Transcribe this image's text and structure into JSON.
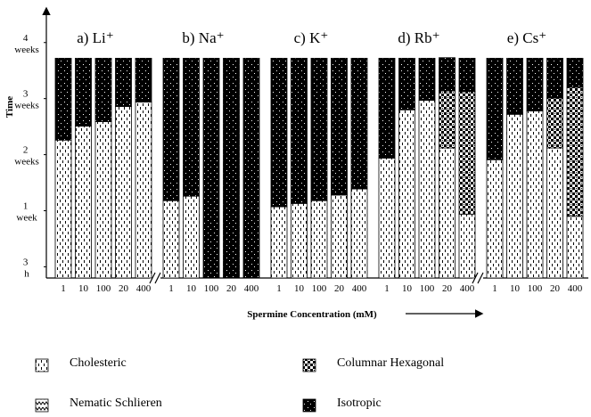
{
  "chart_data": {
    "type": "bar",
    "stacked": true,
    "y_label": "Time",
    "x_label": "Spermine Concentration (mM)",
    "groups": [
      "a) Li⁺",
      "b) Na⁺",
      "c) K⁺",
      "d) Rb⁺",
      "e) Cs⁺"
    ],
    "categories": [
      "1",
      "10",
      "100",
      "20",
      "400",
      "1",
      "10",
      "100",
      "20",
      "400",
      "1",
      "10",
      "100",
      "20",
      "400",
      "1",
      "10",
      "100",
      "20",
      "400",
      "1",
      "10",
      "100",
      "20",
      "400"
    ],
    "ylim": [
      0,
      4.8
    ],
    "yticks": [
      {
        "value": 0.2,
        "label": "3 h"
      },
      {
        "value": 1.2,
        "label": "1 week"
      },
      {
        "value": 2.2,
        "label": "2 weeks"
      },
      {
        "value": 3.2,
        "label": "3 weeks"
      },
      {
        "value": 4.2,
        "label": "4 weeks"
      }
    ],
    "series": [
      {
        "name": "Cholesteric",
        "values": [
          2.46,
          2.71,
          2.79,
          3.06,
          3.14,
          1.38,
          1.46,
          0,
          0,
          0,
          1.27,
          1.33,
          1.38,
          1.48,
          1.59,
          2.14,
          3.0,
          3.17,
          2.32,
          1.14,
          2.11,
          2.92,
          2.98,
          2.32,
          1.1
        ]
      },
      {
        "name": "Nematic Schlieren",
        "values": [
          0,
          0,
          0,
          0,
          0,
          0,
          0,
          0,
          0,
          0,
          0,
          0,
          0,
          0,
          0,
          0,
          0,
          0,
          0,
          0,
          0,
          0,
          0,
          0,
          0
        ]
      },
      {
        "name": "Columnar Hexagonal",
        "values": [
          0,
          0,
          0,
          0,
          0,
          0,
          0,
          0,
          0,
          0,
          0,
          0,
          0,
          0,
          0,
          0,
          0,
          0,
          1.02,
          2.19,
          0,
          0,
          0,
          0.89,
          2.3
        ]
      },
      {
        "name": "Isotropic",
        "values": [
          1.46,
          1.21,
          1.13,
          0.86,
          0.78,
          2.54,
          2.46,
          3.92,
          3.92,
          3.92,
          2.65,
          2.59,
          2.54,
          2.44,
          2.33,
          1.78,
          0.92,
          0.75,
          0.59,
          0.59,
          1.81,
          1.0,
          0.94,
          0.71,
          0.52
        ]
      }
    ]
  }
}
